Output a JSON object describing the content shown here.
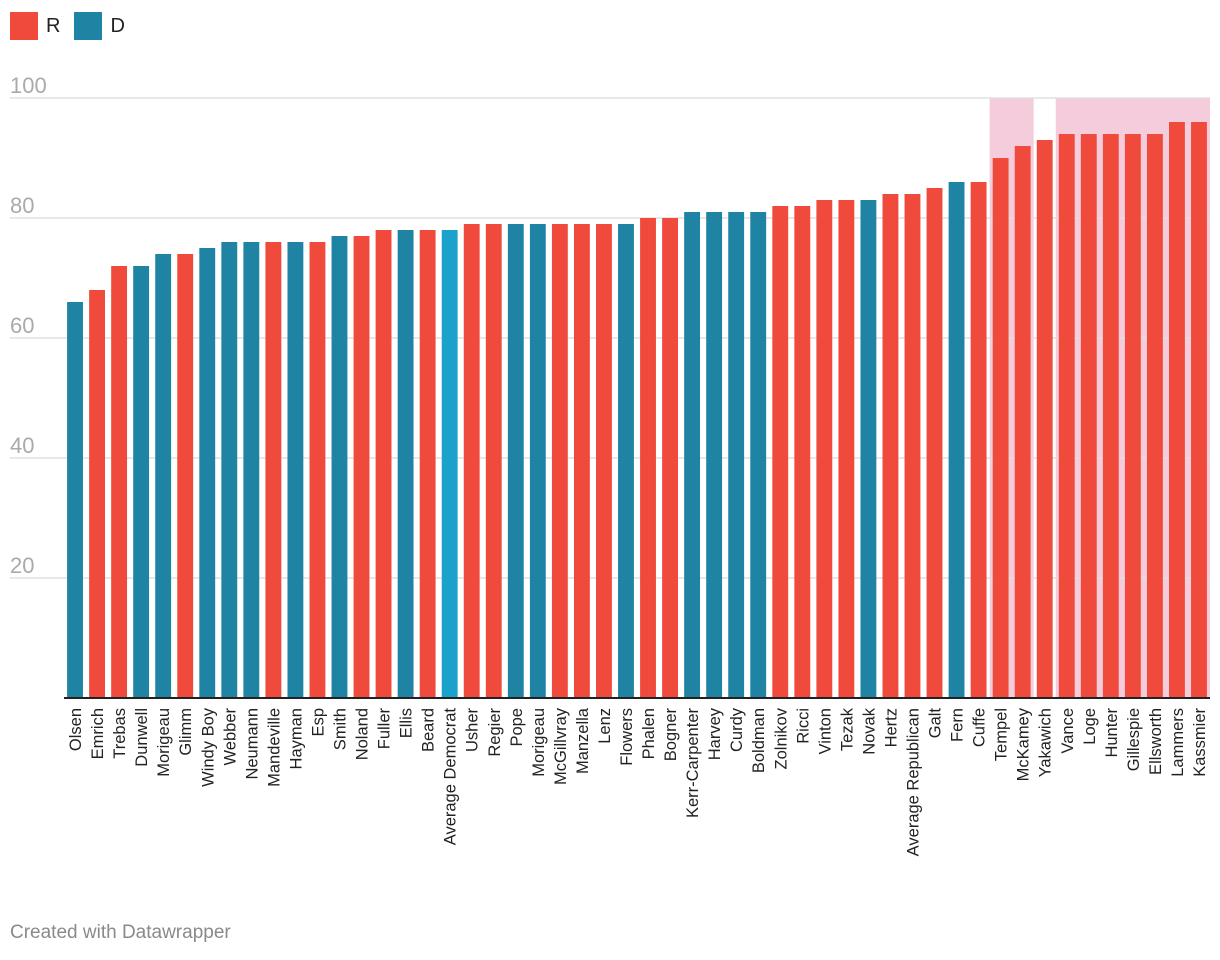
{
  "legend": [
    {
      "label": "R",
      "color": "#ef4a3c"
    },
    {
      "label": "D",
      "color": "#1f83a3"
    }
  ],
  "colors": {
    "R": "#ef4a3c",
    "D": "#1f83a3",
    "AVG_D": "#1aa1cc",
    "highlight": "#f5ccdb",
    "grid": "#e0e0e0",
    "axis": "#222222",
    "tick_text": "#aaaaaa",
    "label_text": "#222222"
  },
  "chart_data": {
    "type": "bar",
    "title": "",
    "xlabel": "",
    "ylabel": "",
    "ylim": [
      0,
      100
    ],
    "yticks": [
      20,
      40,
      60,
      80,
      100
    ],
    "categories": [
      "Olsen",
      "Emrich",
      "Trebas",
      "Dunwell",
      "Morigeau",
      "Glimm",
      "Windy Boy",
      "Webber",
      "Neumann",
      "Mandeville",
      "Hayman",
      "Esp",
      "Smith",
      "Noland",
      "Fuller",
      "Ellis",
      "Beard",
      "Average Democrat",
      "Usher",
      "Regier",
      "Pope",
      "Morigeau",
      "McGillvray",
      "Manzella",
      "Lenz",
      "Flowers",
      "Phalen",
      "Bogner",
      "Kerr-Carpenter",
      "Harvey",
      "Curdy",
      "Boldman",
      "Zolnikov",
      "Ricci",
      "Vinton",
      "Tezak",
      "Novak",
      "Hertz",
      "Average Republican",
      "Galt",
      "Fern",
      "Cuffe",
      "Tempel",
      "McKamey",
      "Yakawich",
      "Vance",
      "Loge",
      "Hunter",
      "Gillespie",
      "Ellsworth",
      "Lammers",
      "Kassmier"
    ],
    "values": [
      66,
      68,
      72,
      72,
      74,
      74,
      75,
      76,
      76,
      76,
      76,
      76,
      77,
      77,
      78,
      78,
      78,
      78,
      79,
      79,
      79,
      79,
      79,
      79,
      79,
      79,
      80,
      80,
      81,
      81,
      81,
      81,
      82,
      82,
      83,
      83,
      83,
      84,
      84,
      85,
      86,
      86,
      90,
      92,
      93,
      94,
      94,
      94,
      94,
      94,
      96,
      96
    ],
    "party": [
      "D",
      "R",
      "R",
      "D",
      "D",
      "R",
      "D",
      "D",
      "D",
      "R",
      "D",
      "R",
      "D",
      "R",
      "R",
      "D",
      "R",
      "AVG_D",
      "R",
      "R",
      "D",
      "D",
      "R",
      "R",
      "R",
      "D",
      "R",
      "R",
      "D",
      "D",
      "D",
      "D",
      "R",
      "R",
      "R",
      "R",
      "D",
      "R",
      "R",
      "R",
      "D",
      "R",
      "R",
      "R",
      "R",
      "R",
      "R",
      "R",
      "R",
      "R",
      "R",
      "R"
    ],
    "highlight_ranges": [
      [
        "Tempel",
        "McKamey"
      ],
      [
        "Vance",
        "Kassmier"
      ]
    ]
  },
  "footer": {
    "text": "Created with Datawrapper"
  }
}
